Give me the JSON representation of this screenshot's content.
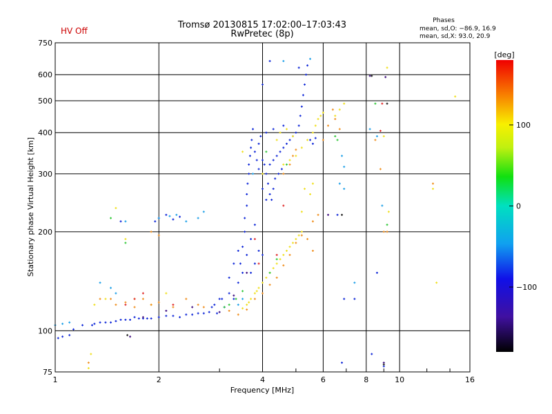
{
  "chart_data": {
    "type": "scatter",
    "title": "Tromsø 20130815 17:02:00–17:03:43",
    "subtitle": "RwPretec (8p)",
    "status_text": "HV Off",
    "stats": {
      "heading": "Phases",
      "line_o": "mean, sd,O: −86.9, 16.9",
      "line_x": "mean, sd,X:  93.0, 20.9"
    },
    "xlabel": "Frequency [MHz]",
    "ylabel": "Stationary phase Virtual Height [km]",
    "xscale": "log",
    "yscale": "log",
    "xlim": [
      1,
      16
    ],
    "ylim": [
      75,
      750
    ],
    "x_ticks": [
      1,
      2,
      4,
      6,
      8,
      10,
      16
    ],
    "y_ticks": [
      75,
      100,
      200,
      300,
      400,
      500,
      600,
      750
    ],
    "grid": true,
    "colorbar": {
      "label": "[deg]",
      "range": [
        -180,
        180
      ],
      "ticks": [
        100,
        0,
        -100
      ]
    },
    "series": [
      {
        "color": "#1028d8",
        "points": [
          [
            1.02,
            95
          ],
          [
            1.05,
            96
          ],
          [
            1.1,
            97
          ],
          [
            1.13,
            101
          ],
          [
            1.2,
            104
          ],
          [
            1.3,
            105
          ],
          [
            1.4,
            106
          ],
          [
            1.5,
            107
          ],
          [
            1.6,
            108
          ],
          [
            1.8,
            109
          ],
          [
            2.0,
            110
          ],
          [
            2.2,
            111
          ],
          [
            2.4,
            112
          ],
          [
            2.6,
            113
          ],
          [
            2.8,
            114
          ],
          [
            2.95,
            113
          ],
          [
            1.7,
            110
          ],
          [
            1.9,
            109
          ],
          [
            2.1,
            111
          ],
          [
            2.5,
            112
          ],
          [
            1.28,
            104
          ],
          [
            1.35,
            106
          ],
          [
            1.45,
            106
          ],
          [
            1.55,
            108
          ],
          [
            1.65,
            108
          ],
          [
            1.75,
            109
          ],
          [
            1.85,
            109
          ],
          [
            2.3,
            110
          ],
          [
            2.7,
            113
          ],
          [
            3.1,
            118
          ],
          [
            3.2,
            130
          ],
          [
            3.3,
            125
          ],
          [
            3.4,
            140
          ],
          [
            3.45,
            160
          ],
          [
            3.5,
            150
          ],
          [
            3.5,
            180
          ],
          [
            3.55,
            200
          ],
          [
            3.55,
            220
          ],
          [
            3.6,
            240
          ],
          [
            3.6,
            260
          ],
          [
            3.62,
            280
          ],
          [
            3.65,
            300
          ],
          [
            3.65,
            320
          ],
          [
            3.68,
            340
          ],
          [
            3.7,
            360
          ],
          [
            3.72,
            380
          ],
          [
            3.75,
            410
          ],
          [
            3.8,
            350
          ],
          [
            3.85,
            330
          ],
          [
            3.9,
            370
          ],
          [
            3.95,
            390
          ],
          [
            3.6,
            170
          ],
          [
            3.7,
            190
          ],
          [
            3.8,
            210
          ],
          [
            3.7,
            150
          ],
          [
            3.8,
            160
          ],
          [
            3.9,
            175
          ],
          [
            4.0,
            170
          ],
          [
            4.0,
            330
          ],
          [
            4.05,
            320
          ],
          [
            4.1,
            300
          ],
          [
            4.15,
            280
          ],
          [
            4.2,
            260
          ],
          [
            4.25,
            250
          ],
          [
            4.3,
            270
          ],
          [
            4.35,
            290
          ],
          [
            4.2,
            320
          ],
          [
            4.3,
            330
          ],
          [
            4.4,
            340
          ],
          [
            4.5,
            350
          ],
          [
            4.6,
            360
          ],
          [
            4.7,
            370
          ],
          [
            4.8,
            380
          ],
          [
            4.9,
            390
          ],
          [
            5.0,
            400
          ],
          [
            5.1,
            420
          ],
          [
            5.15,
            450
          ],
          [
            5.2,
            480
          ],
          [
            5.25,
            520
          ],
          [
            5.3,
            560
          ],
          [
            5.35,
            600
          ],
          [
            5.4,
            640
          ],
          [
            5.5,
            380
          ],
          [
            5.6,
            370
          ],
          [
            5.7,
            385
          ],
          [
            4.0,
            560
          ],
          [
            4.2,
            660
          ],
          [
            4.1,
            400
          ],
          [
            4.3,
            410
          ],
          [
            4.6,
            420
          ],
          [
            3.9,
            310
          ],
          [
            4.0,
            270
          ],
          [
            4.1,
            250
          ],
          [
            4.45,
            300
          ],
          [
            4.55,
            310
          ],
          [
            3.3,
            160
          ],
          [
            3.4,
            175
          ],
          [
            3.2,
            145
          ],
          [
            3.0,
            125
          ],
          [
            2.9,
            120
          ],
          [
            2.85,
            118
          ],
          [
            3.05,
            125
          ],
          [
            1.95,
            215
          ],
          [
            2.0,
            220
          ],
          [
            2.1,
            225
          ],
          [
            2.2,
            218
          ],
          [
            2.3,
            222
          ],
          [
            1.55,
            215
          ],
          [
            6.9,
            125
          ],
          [
            7.4,
            125
          ],
          [
            6.8,
            80
          ],
          [
            9.0,
            78
          ],
          [
            8.6,
            150
          ],
          [
            8.3,
            85
          ],
          [
            6.6,
            225
          ],
          [
            5.1,
            630
          ]
        ]
      },
      {
        "color": "#1ea0e8",
        "points": [
          [
            1.0,
            104
          ],
          [
            1.05,
            105
          ],
          [
            1.1,
            106
          ],
          [
            2.0,
            220
          ],
          [
            2.15,
            223
          ],
          [
            2.25,
            225
          ],
          [
            1.6,
            215
          ],
          [
            2.4,
            215
          ],
          [
            2.7,
            230
          ],
          [
            2.6,
            220
          ],
          [
            1.35,
            140
          ],
          [
            1.45,
            135
          ],
          [
            1.5,
            130
          ],
          [
            6.8,
            340
          ],
          [
            6.7,
            280
          ],
          [
            6.9,
            315
          ],
          [
            7.4,
            140
          ],
          [
            8.2,
            410
          ],
          [
            8.6,
            390
          ],
          [
            4.6,
            660
          ],
          [
            5.5,
            670
          ],
          [
            3.4,
            120
          ],
          [
            3.5,
            125
          ],
          [
            3.75,
            300
          ],
          [
            6.9,
            270
          ],
          [
            8.9,
            240
          ]
        ]
      },
      {
        "color": "#f0e020",
        "points": [
          [
            3.5,
            117
          ],
          [
            3.6,
            120
          ],
          [
            3.7,
            125
          ],
          [
            3.8,
            130
          ],
          [
            3.9,
            135
          ],
          [
            4.0,
            140
          ],
          [
            4.2,
            150
          ],
          [
            4.4,
            160
          ],
          [
            4.6,
            170
          ],
          [
            4.8,
            180
          ],
          [
            5.0,
            190
          ],
          [
            5.2,
            200
          ],
          [
            4.1,
            145
          ],
          [
            4.3,
            155
          ],
          [
            4.5,
            165
          ],
          [
            4.7,
            175
          ],
          [
            4.9,
            185
          ],
          [
            5.1,
            195
          ],
          [
            3.65,
            122
          ],
          [
            3.85,
            132
          ],
          [
            4.6,
            320
          ],
          [
            4.8,
            330
          ],
          [
            5.0,
            340
          ],
          [
            5.2,
            360
          ],
          [
            5.4,
            380
          ],
          [
            5.6,
            400
          ],
          [
            5.8,
            440
          ],
          [
            6.0,
            460
          ],
          [
            5.7,
            420
          ],
          [
            5.9,
            450
          ],
          [
            4.4,
            380
          ],
          [
            4.5,
            400
          ],
          [
            4.7,
            410
          ],
          [
            4.9,
            390
          ],
          [
            5.3,
            270
          ],
          [
            5.5,
            260
          ],
          [
            5.6,
            280
          ],
          [
            1.25,
            77
          ],
          [
            1.27,
            85
          ],
          [
            1.5,
            236
          ],
          [
            1.6,
            190
          ],
          [
            5.2,
            230
          ],
          [
            1.3,
            120
          ],
          [
            1.4,
            125
          ],
          [
            1.7,
            125
          ],
          [
            1.9,
            120
          ],
          [
            2.1,
            130
          ],
          [
            9.2,
            630
          ],
          [
            9.0,
            390
          ],
          [
            9.3,
            230
          ],
          [
            14.5,
            515
          ],
          [
            12.5,
            270
          ],
          [
            12.8,
            140
          ],
          [
            3.5,
            350
          ],
          [
            4.0,
            300
          ],
          [
            6.7,
            470
          ],
          [
            6.9,
            490
          ],
          [
            6.5,
            450
          ]
        ]
      },
      {
        "color": "#f09020",
        "points": [
          [
            1.45,
            125
          ],
          [
            1.5,
            120
          ],
          [
            1.6,
            122
          ],
          [
            1.7,
            118
          ],
          [
            1.8,
            125
          ],
          [
            1.9,
            120
          ],
          [
            2.0,
            122
          ],
          [
            2.2,
            118
          ],
          [
            2.4,
            125
          ],
          [
            2.6,
            120
          ],
          [
            2.7,
            118
          ],
          [
            3.4,
            112
          ],
          [
            3.6,
            116
          ],
          [
            3.8,
            125
          ],
          [
            4.0,
            130
          ],
          [
            4.2,
            138
          ],
          [
            4.4,
            145
          ],
          [
            4.6,
            158
          ],
          [
            4.8,
            170
          ],
          [
            5.0,
            185
          ],
          [
            5.2,
            195
          ],
          [
            5.4,
            190
          ],
          [
            5.6,
            215
          ],
          [
            5.8,
            225
          ],
          [
            6.0,
            380
          ],
          [
            6.2,
            420
          ],
          [
            6.5,
            440
          ],
          [
            6.7,
            410
          ],
          [
            4.6,
            300
          ],
          [
            4.8,
            320
          ],
          [
            4.9,
            340
          ],
          [
            5.0,
            355
          ],
          [
            1.9,
            200
          ],
          [
            2.0,
            195
          ],
          [
            6.4,
            470
          ],
          [
            9.0,
            200
          ],
          [
            9.2,
            200
          ],
          [
            8.5,
            380
          ],
          [
            8.8,
            310
          ],
          [
            5.6,
            175
          ],
          [
            3.2,
            115
          ],
          [
            1.35,
            125
          ],
          [
            1.25,
            80
          ],
          [
            12.5,
            280
          ]
        ]
      },
      {
        "color": "#e02828",
        "points": [
          [
            1.6,
            120
          ],
          [
            1.8,
            130
          ],
          [
            1.7,
            125
          ],
          [
            3.9,
            160
          ],
          [
            4.4,
            170
          ],
          [
            4.6,
            240
          ],
          [
            8.8,
            405
          ],
          [
            8.9,
            490
          ],
          [
            3.8,
            190
          ],
          [
            2.2,
            120
          ]
        ]
      },
      {
        "color": "#30c838",
        "points": [
          [
            3.1,
            118
          ],
          [
            3.2,
            120
          ],
          [
            3.5,
            132
          ],
          [
            4.2,
            150
          ],
          [
            4.4,
            165
          ],
          [
            6.5,
            390
          ],
          [
            6.6,
            380
          ],
          [
            4.1,
            350
          ],
          [
            1.6,
            185
          ],
          [
            1.45,
            220
          ],
          [
            8.5,
            490
          ],
          [
            9.2,
            210
          ],
          [
            4.7,
            320
          ],
          [
            3.35,
            125
          ]
        ]
      },
      {
        "color": "#401080",
        "points": [
          [
            1.8,
            110
          ],
          [
            2.1,
            115
          ],
          [
            2.5,
            118
          ],
          [
            3.3,
            128
          ],
          [
            3.6,
            150
          ],
          [
            8.2,
            595
          ],
          [
            9.1,
            590
          ],
          [
            9.0,
            80
          ],
          [
            6.2,
            225
          ],
          [
            1.65,
            96
          ],
          [
            3.0,
            114
          ]
        ]
      },
      {
        "color": "#202020",
        "points": [
          [
            8.3,
            595
          ],
          [
            9.2,
            490
          ],
          [
            6.8,
            225
          ],
          [
            9.0,
            79
          ],
          [
            1.62,
            97
          ]
        ]
      }
    ]
  }
}
